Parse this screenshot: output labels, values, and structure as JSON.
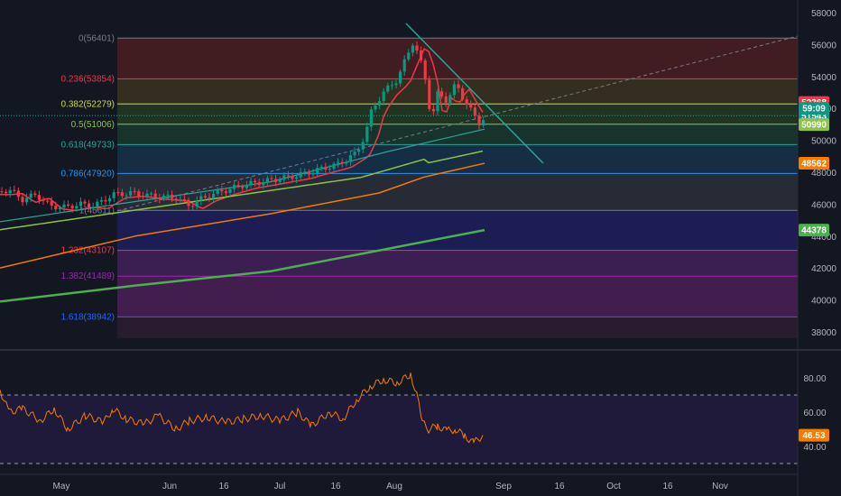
{
  "chart_data": {
    "type": "candlestick",
    "symbol_panel": {
      "price_axis": [
        "58000",
        "56000",
        "54000",
        "52000",
        "50000",
        "48000",
        "46000",
        "44000",
        "42000",
        "40000",
        "38000"
      ],
      "price_tags": [
        {
          "value": "52368",
          "price": 52368,
          "color": "#f23645"
        },
        {
          "value": "51543",
          "price": 51543,
          "color": "#089981"
        },
        {
          "value": "59:09",
          "price": 50990,
          "color": "#089981",
          "offset": -18
        },
        {
          "value": "50990",
          "price": 50990,
          "color": "#8bc34a",
          "text_color": "#131722"
        },
        {
          "value": "48562",
          "price": 48562,
          "color": "#f57c00"
        },
        {
          "value": "44378",
          "price": 44378,
          "color": "#4caf50"
        }
      ],
      "fib_levels": [
        {
          "label": "0(56401)",
          "price": 56401,
          "color": "#787b86",
          "band": "#4a1f22"
        },
        {
          "label": "0.236(53854)",
          "price": 53854,
          "color": "#f23645",
          "band": "#3b3320"
        },
        {
          "label": "0.382(52279)",
          "price": 52279,
          "color": "#cddc39",
          "band": "#253a22"
        },
        {
          "label": "0.5(51006)",
          "price": 51006,
          "color": "#8bc34a",
          "band": "#183a2e"
        },
        {
          "label": "0.618(49733)",
          "price": 49733,
          "color": "#26a69a",
          "band": "#16334a"
        },
        {
          "label": "0.786(47920)",
          "price": 47920,
          "color": "#2196f3",
          "band": "#2b2f3a"
        },
        {
          "label": "1(45611)",
          "price": 45611,
          "color": "#787b86",
          "band": "#1d1f5c"
        },
        {
          "label": "1.232(43107)",
          "price": 43107,
          "color": "#f23645",
          "band": "#43205a"
        },
        {
          "label": "1.382(41489)",
          "price": 41489,
          "color": "#9c27b0",
          "band": "#4a2056"
        },
        {
          "label": "1.618(38942)",
          "price": 38942,
          "color": "#2962ff",
          "band": "#2b1d2e"
        }
      ],
      "fib_bottom_price": 37600
    },
    "rsi_panel": {
      "axis": [
        "80.00",
        "60.00",
        "40.00"
      ],
      "upper_band": 70,
      "lower_band": 30,
      "last_value": "46.53",
      "last": 46.53,
      "line_color": "#f57c00"
    },
    "time_axis": [
      "May",
      "Jun",
      "16",
      "Jul",
      "16",
      "Aug",
      "Sep",
      "16",
      "Oct",
      "16",
      "Nov"
    ],
    "colors": {
      "up": "#089981",
      "down": "#f23645",
      "ema_red": "#f23645",
      "ema_green": "#8bc34a",
      "ema_teal": "#26a69a",
      "ema_orange": "#f57c00",
      "ema_green2": "#4caf50"
    }
  }
}
